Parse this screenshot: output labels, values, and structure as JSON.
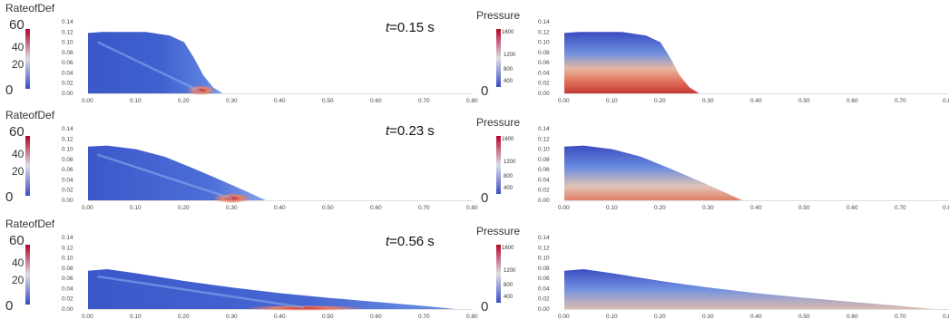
{
  "rows": [
    {
      "time_var": "t",
      "time_rest": "=0.15 s",
      "left": {
        "label": "RateofDef",
        "cb_max": "60",
        "cb_mid": [
          "40",
          "20"
        ],
        "cb_min": "0"
      },
      "right": {
        "label": "Pressure",
        "cb_max": "1600",
        "cb_mid": [
          "1200",
          "800",
          "400"
        ],
        "cb_min": "0"
      }
    },
    {
      "time_var": "t",
      "time_rest": "=0.23 s",
      "left": {
        "label": "RateofDef",
        "cb_max": "60",
        "cb_mid": [
          "40",
          "20"
        ],
        "cb_min": "0"
      },
      "right": {
        "label": "Pressure",
        "cb_max": "1600",
        "cb_mid": [
          "1200",
          "800",
          "400"
        ],
        "cb_min": "0"
      }
    },
    {
      "time_var": "t",
      "time_rest": "=0.56 s",
      "left": {
        "label": "RateofDef",
        "cb_max": "60",
        "cb_mid": [
          "40",
          "20"
        ],
        "cb_min": "0"
      },
      "right": {
        "label": "Pressure",
        "cb_max": "1600",
        "cb_mid": [
          "1200",
          "800",
          "400"
        ],
        "cb_min": "0"
      }
    }
  ],
  "axes": {
    "x_ticks": [
      "0.00",
      "0.10",
      "0.20",
      "0.30",
      "0.40",
      "0.50",
      "0.60",
      "0.70",
      "0.80"
    ],
    "y_ticks": [
      "0.00",
      "0.02",
      "0.04",
      "0.06",
      "0.08",
      "0.10",
      "0.12",
      "0.14"
    ]
  },
  "colors": {
    "low": "#3b4cc0",
    "mid": "#dddddd",
    "high": "#b40426"
  }
}
